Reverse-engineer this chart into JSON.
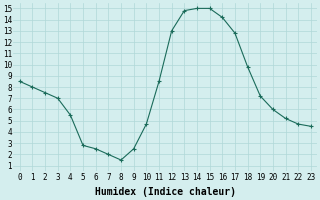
{
  "x": [
    0,
    1,
    2,
    3,
    4,
    5,
    6,
    7,
    8,
    9,
    10,
    11,
    12,
    13,
    14,
    15,
    16,
    17,
    18,
    19,
    20,
    21,
    22,
    23
  ],
  "y": [
    8.5,
    8.0,
    7.5,
    7.0,
    5.5,
    2.8,
    2.5,
    2.0,
    1.5,
    2.5,
    4.7,
    8.5,
    13.0,
    14.8,
    15.0,
    15.0,
    14.2,
    12.8,
    9.8,
    7.2,
    6.0,
    5.2,
    4.7,
    4.5
  ],
  "line_color": "#1a6b5a",
  "marker": "+",
  "marker_size": 3,
  "bg_color": "#d4eeee",
  "grid_color": "#b0d8d8",
  "xlabel": "Humidex (Indice chaleur)",
  "xlim": [
    -0.5,
    23.5
  ],
  "ylim": [
    0.5,
    15.5
  ],
  "xticks": [
    0,
    1,
    2,
    3,
    4,
    5,
    6,
    7,
    8,
    9,
    10,
    11,
    12,
    13,
    14,
    15,
    16,
    17,
    18,
    19,
    20,
    21,
    22,
    23
  ],
  "yticks": [
    1,
    2,
    3,
    4,
    5,
    6,
    7,
    8,
    9,
    10,
    11,
    12,
    13,
    14,
    15
  ],
  "tick_fontsize": 5.5,
  "xlabel_fontsize": 7,
  "figwidth": 3.2,
  "figheight": 2.0,
  "dpi": 100
}
